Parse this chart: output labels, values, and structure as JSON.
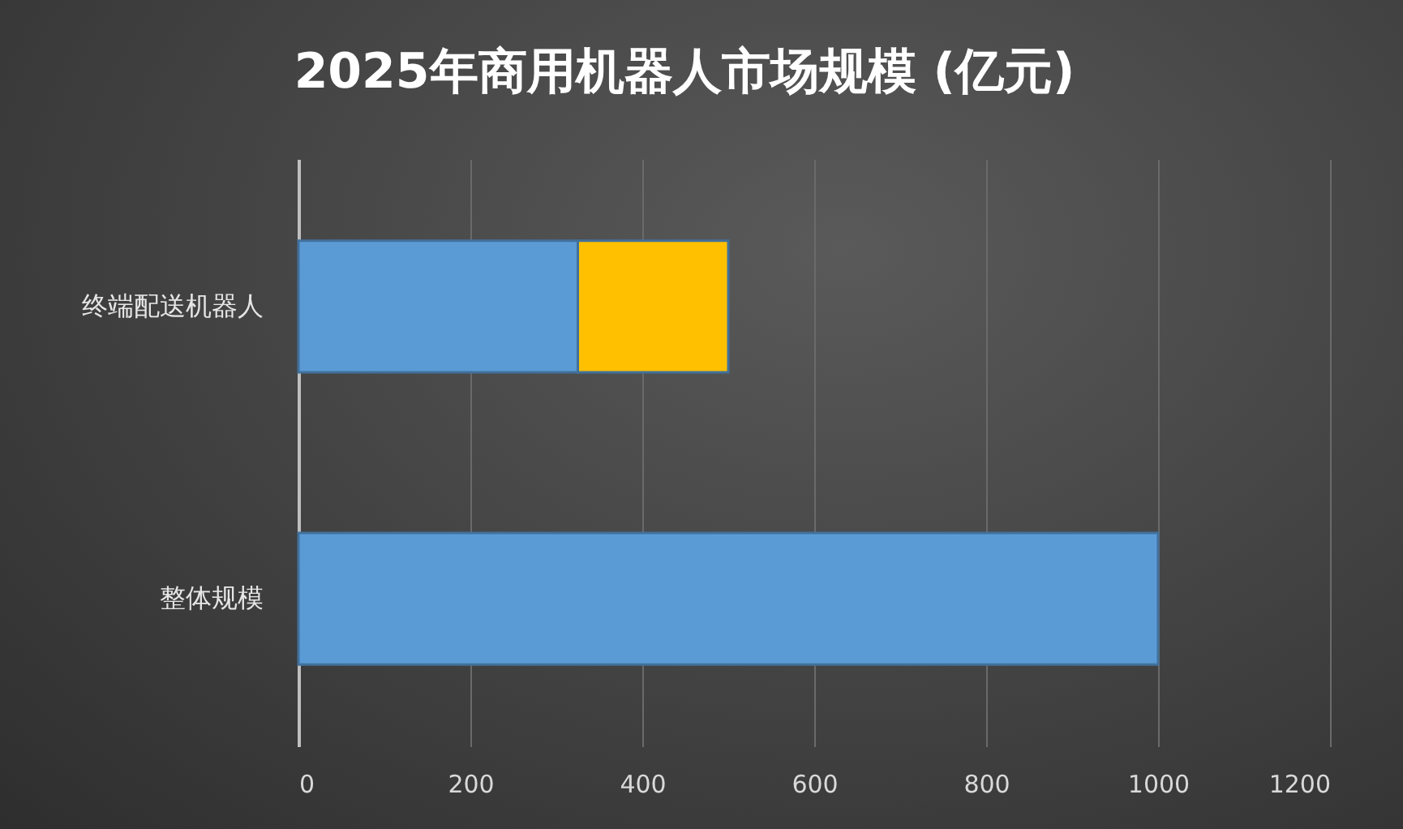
{
  "chart_data": {
    "type": "bar",
    "title": "2025年商用机器人市场规模 (亿元)",
    "orientation": "horizontal",
    "stacked": true,
    "categories": [
      "终端配送机器人",
      "整体规模"
    ],
    "series": [
      {
        "color": "#5b9bd5",
        "values": [
          325,
          1000
        ]
      },
      {
        "color": "#ffc000",
        "values": [
          175,
          null
        ]
      }
    ],
    "xlim": [
      0,
      1200
    ],
    "xticks": [
      0,
      200,
      400,
      600,
      800,
      1000,
      1200
    ],
    "grid": "x",
    "legend": false
  }
}
